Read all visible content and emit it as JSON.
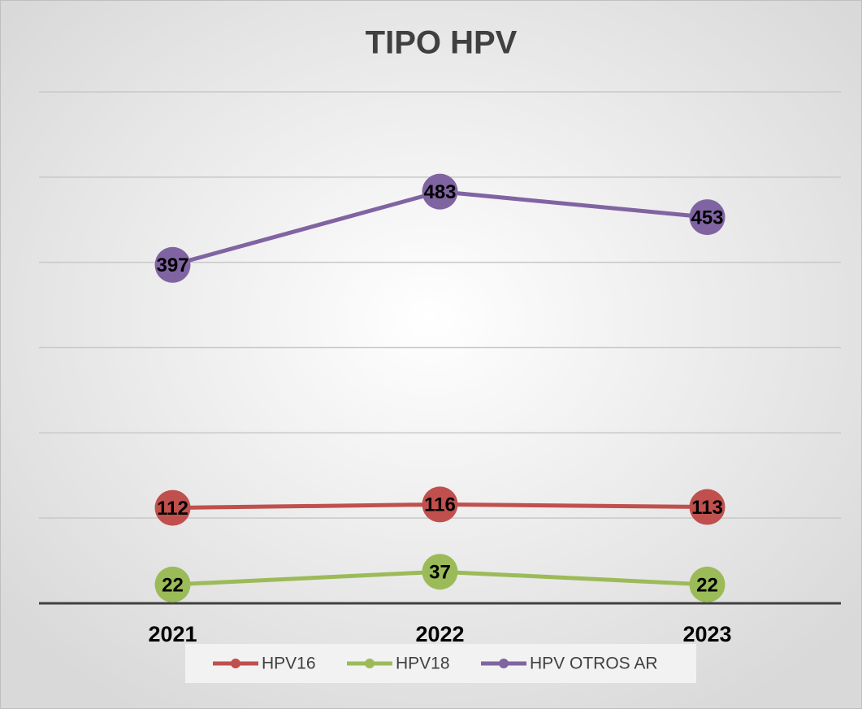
{
  "chart_data": {
    "type": "line",
    "title": "TIPO HPV",
    "categories": [
      "2021",
      "2022",
      "2023"
    ],
    "series": [
      {
        "name": "HPV16",
        "color": "#c0504d",
        "values": [
          112,
          116,
          113
        ]
      },
      {
        "name": "HPV18",
        "color": "#9bbb59",
        "values": [
          22,
          37,
          22
        ]
      },
      {
        "name": "HPV OTROS AR",
        "color": "#8064a2",
        "values": [
          397,
          483,
          453
        ]
      }
    ],
    "ylim": [
      0,
      600
    ],
    "yticks": [
      0,
      100,
      200,
      300,
      400,
      500,
      600
    ],
    "grid": true,
    "legend": "bottom"
  }
}
